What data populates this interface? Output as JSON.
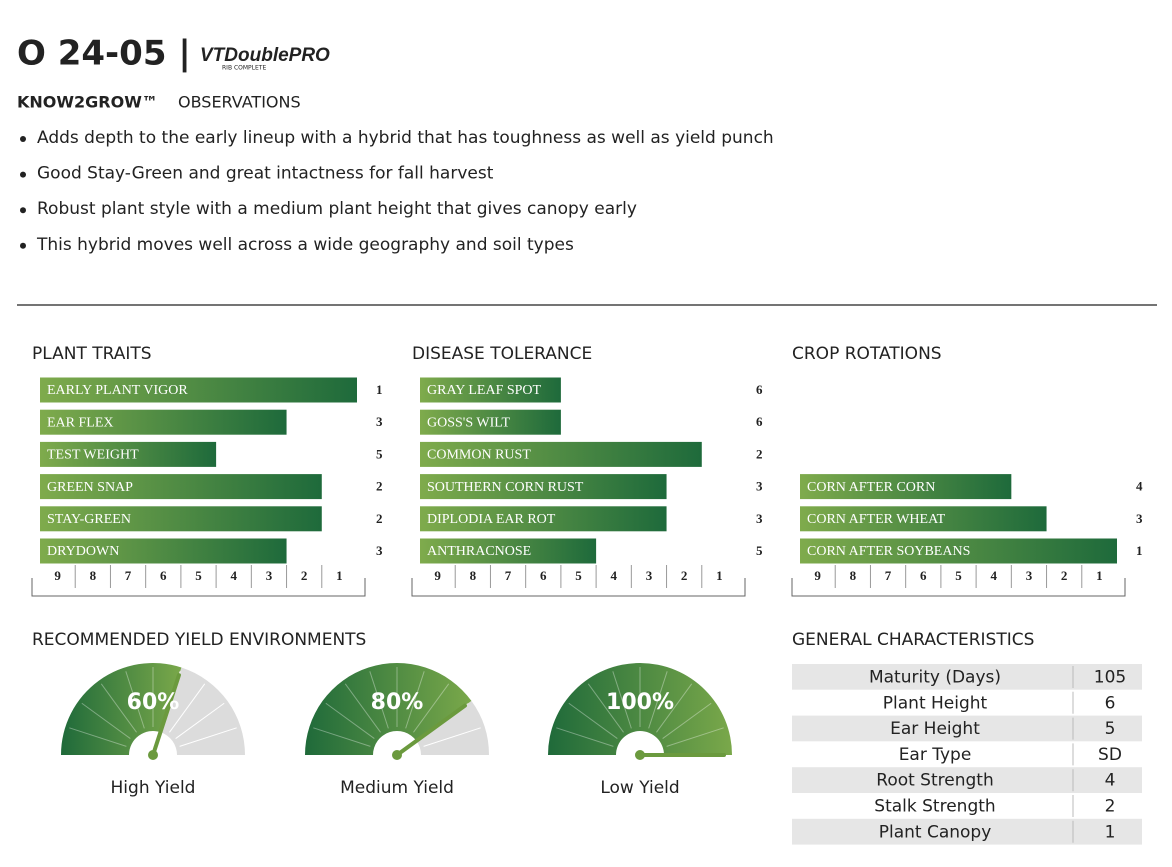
{
  "header": {
    "title": "O 24-05 |",
    "logo": {
      "main": "VTDoublePRO",
      "sub": "RIB COMPLETE"
    }
  },
  "observations": {
    "brand": "KNOW2GROW™",
    "heading": "OBSERVATIONS",
    "bullets": [
      "Adds depth to the early lineup with a hybrid that has toughness as well as yield punch",
      "Good Stay-Green and great intactness for fall harvest",
      "Robust plant style with a medium plant height that gives canopy early",
      "This hybrid moves well across a wide geography and soil types"
    ]
  },
  "panels": [
    {
      "title": "PLANT TRAITS",
      "ticks": [
        9,
        8,
        7,
        6,
        5,
        4,
        3,
        2,
        1
      ],
      "rows": [
        {
          "label": "EARLY PLANT VIGOR",
          "value": 1
        },
        {
          "label": "EAR FLEX",
          "value": 3
        },
        {
          "label": "TEST WEIGHT",
          "value": 5
        },
        {
          "label": "GREEN SNAP",
          "value": 2
        },
        {
          "label": "STAY-GREEN",
          "value": 2
        },
        {
          "label": "DRYDOWN",
          "value": 3
        }
      ]
    },
    {
      "title": "DISEASE TOLERANCE",
      "ticks": [
        9,
        8,
        7,
        6,
        5,
        4,
        3,
        2,
        1
      ],
      "rows": [
        {
          "label": "GRAY LEAF SPOT",
          "value": 6
        },
        {
          "label": "GOSS'S WILT",
          "value": 6
        },
        {
          "label": "COMMON RUST",
          "value": 2
        },
        {
          "label": "SOUTHERN CORN RUST",
          "value": 3
        },
        {
          "label": "DIPLODIA EAR ROT",
          "value": 3
        },
        {
          "label": "ANTHRACNOSE",
          "value": 5
        }
      ]
    },
    {
      "title": "CROP ROTATIONS",
      "ticks": [
        9,
        8,
        7,
        6,
        5,
        4,
        3,
        2,
        1
      ],
      "rows": [
        {
          "label": "CORN AFTER CORN",
          "value": 4
        },
        {
          "label": "CORN AFTER WHEAT",
          "value": 3
        },
        {
          "label": "CORN AFTER SOYBEANS",
          "value": 1
        }
      ]
    }
  ],
  "yield": {
    "title": "RECOMMENDED YIELD ENVIRONMENTS",
    "gauges": [
      {
        "name": "High Yield",
        "value": 60,
        "label": "60%"
      },
      {
        "name": "Medium Yield",
        "value": 80,
        "label": "80%"
      },
      {
        "name": "Low Yield",
        "value": 100,
        "label": "100%"
      }
    ]
  },
  "characteristics": {
    "title": "GENERAL CHARACTERISTICS",
    "rows": [
      [
        "Maturity (Days)",
        105
      ],
      [
        "Plant Height",
        6
      ],
      [
        "Ear Height",
        5
      ],
      [
        "Ear Type",
        "SD"
      ],
      [
        "Root Strength",
        4
      ],
      [
        "Stalk Strength",
        2
      ],
      [
        "Plant Canopy",
        1
      ]
    ]
  }
}
